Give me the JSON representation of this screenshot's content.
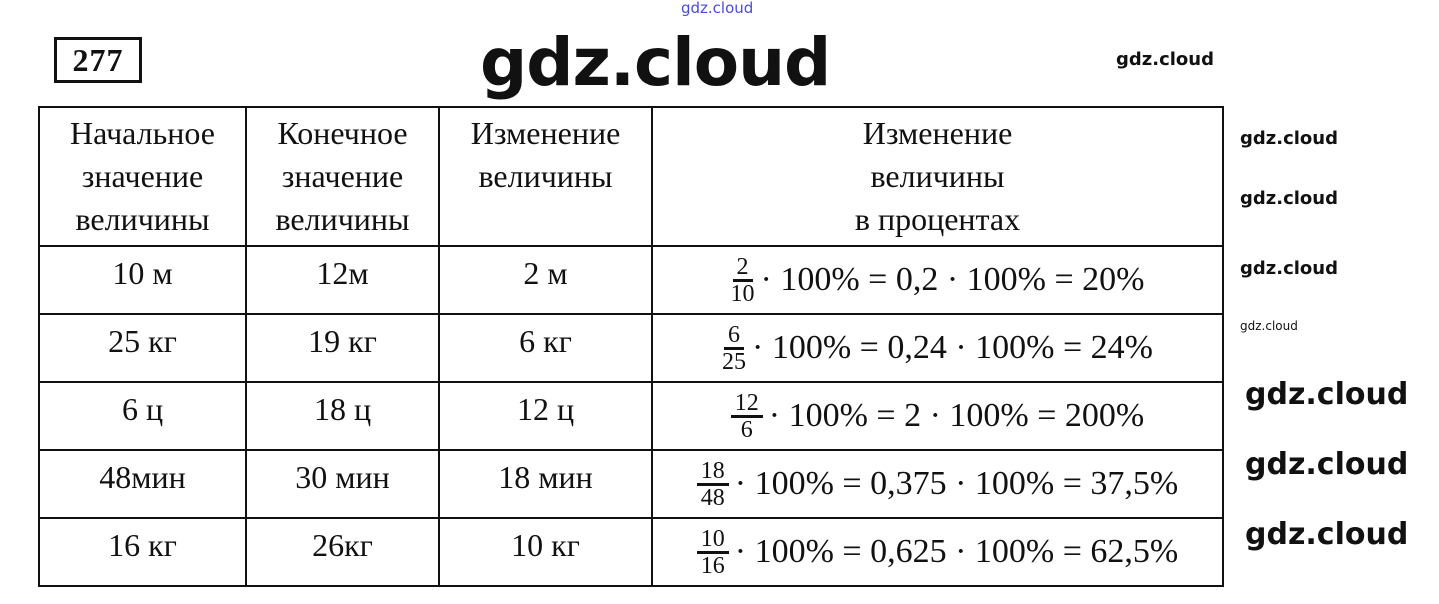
{
  "problem_number": "277",
  "watermarks": [
    "gdz.cloud"
  ],
  "table": {
    "headers": [
      "Начальное значение величины",
      "Конечное значение величины",
      "Изменение величины",
      "Изменение величины в процентах"
    ],
    "header_lines": [
      [
        "Начальное",
        "значение",
        "величины"
      ],
      [
        "Конечное",
        "значение",
        "величины"
      ],
      [
        "Изменение",
        "величины"
      ],
      [
        "Изменение",
        "величины",
        "в процентах"
      ]
    ],
    "rows": [
      {
        "start": "10 м",
        "end": "12м",
        "change": "2 м",
        "num": "2",
        "den": "10",
        "rest": "· 100% = 0,2 · 100% = 20%"
      },
      {
        "start": "25 кг",
        "end": "19 кг",
        "change": "6 кг",
        "num": "6",
        "den": "25",
        "rest": "· 100% = 0,24 · 100% = 24%"
      },
      {
        "start": "6 ц",
        "end": "18 ц",
        "change": "12 ц",
        "num": "12",
        "den": "6",
        "rest": "· 100% = 2 · 100% = 200%"
      },
      {
        "start": "48мин",
        "end": "30 мин",
        "change": "18 мин",
        "num": "18",
        "den": "48",
        "rest": "· 100% = 0,375 · 100% = 37,5%"
      },
      {
        "start": "16 кг",
        "end": "26кг",
        "change": "10 кг",
        "num": "10",
        "den": "16",
        "rest": "· 100% = 0,625 · 100% = 62,5%"
      }
    ]
  }
}
